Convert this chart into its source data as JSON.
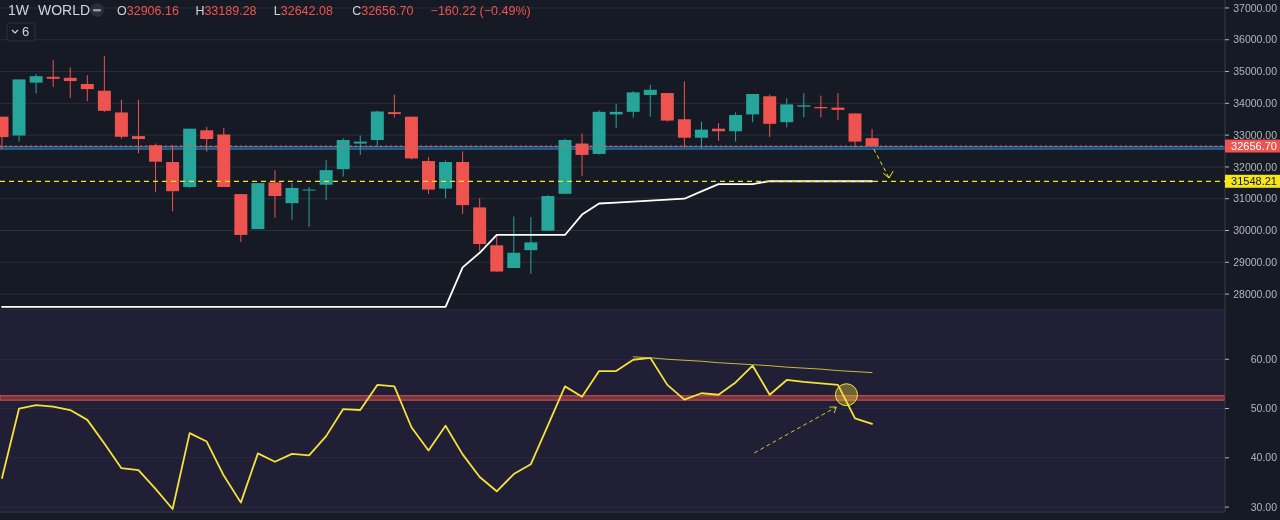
{
  "chart_data": [
    {
      "type": "candlestick",
      "annotations": [
        "1W",
        "WORLD",
        "O32906.16",
        "H33189.28",
        "L32642.08",
        "C32656.70",
        "−160.22 (−0.49%)",
        "6"
      ],
      "categories": [
        null,
        null,
        null,
        null,
        null,
        null,
        null,
        null,
        null,
        null,
        null,
        null,
        null,
        null,
        null,
        null,
        null,
        null,
        null,
        null,
        null,
        null,
        null,
        null,
        null,
        null,
        null,
        null,
        null,
        null,
        null,
        null,
        null,
        null,
        null,
        null,
        null,
        null,
        null,
        null,
        null,
        null,
        null,
        null,
        null,
        null,
        null,
        null,
        null,
        null,
        null,
        null
      ],
      "ohlc": [
        [
          33580,
          33580,
          32561,
          32938
        ],
        [
          32989,
          34752,
          32796,
          34752
        ],
        [
          34650,
          34925,
          34314,
          34854
        ],
        [
          34834,
          35364,
          34518,
          34773
        ],
        [
          34803,
          35129,
          34171,
          34701
        ],
        [
          34609,
          34885,
          34069,
          34446
        ],
        [
          34395,
          35486,
          33733,
          33764
        ],
        [
          33713,
          34110,
          32887,
          32948
        ],
        [
          32969,
          34110,
          32429,
          32877
        ],
        [
          32684,
          32734,
          31206,
          32164
        ],
        [
          32154,
          32684,
          30605,
          31237
        ],
        [
          31369,
          33203,
          31338,
          33203
        ],
        [
          33152,
          33264,
          32480,
          32877
        ],
        [
          33020,
          33224,
          31369,
          31369
        ],
        [
          31145,
          31145,
          29637,
          29861
        ],
        [
          30044,
          31491,
          30044,
          31491
        ],
        [
          31512,
          31899,
          30401,
          31084
        ],
        [
          30860,
          31491,
          30340,
          31338
        ],
        [
          31257,
          31369,
          30116,
          31288
        ],
        [
          31440,
          32225,
          30951,
          31899
        ],
        [
          31929,
          32898,
          31695,
          32847
        ],
        [
          32734,
          32989,
          32378,
          32796
        ],
        [
          32847,
          33774,
          32663,
          33743
        ],
        [
          33723,
          34273,
          33560,
          33662
        ],
        [
          33580,
          33580,
          32235,
          32266
        ],
        [
          32184,
          32307,
          31155,
          31287
        ],
        [
          31318,
          32205,
          31012,
          32154
        ],
        [
          32154,
          32490,
          30523,
          30798
        ],
        [
          30727,
          31012,
          29351,
          29575
        ],
        [
          29535,
          29861,
          28709,
          28709
        ],
        [
          28821,
          30442,
          28821,
          29300
        ],
        [
          29382,
          30421,
          28638,
          29627
        ],
        [
          29993,
          31114,
          29993,
          31084
        ],
        [
          31155,
          32887,
          31155,
          32847
        ],
        [
          32735,
          33050,
          31716,
          32378
        ],
        [
          32409,
          33784,
          32388,
          33733
        ],
        [
          33652,
          33978,
          33224,
          33733
        ],
        [
          33733,
          34385,
          33550,
          34345
        ],
        [
          34263,
          34579,
          33580,
          34426
        ],
        [
          34324,
          34324,
          33428,
          33458
        ],
        [
          33499,
          34691,
          32612,
          32918
        ],
        [
          32918,
          33427,
          32582,
          33173
        ],
        [
          33203,
          33377,
          32816,
          33122
        ],
        [
          33122,
          33713,
          32796,
          33631
        ],
        [
          33652,
          34293,
          33407,
          34293
        ],
        [
          34222,
          34273,
          32938,
          33356
        ],
        [
          33407,
          34161,
          33244,
          33967
        ],
        [
          33896,
          34324,
          33560,
          33937
        ],
        [
          33886,
          34242,
          33560,
          33845
        ],
        [
          33866,
          34324,
          33479,
          33794
        ],
        [
          33682,
          33682,
          32612,
          32796
        ],
        [
          32906.16,
          33189.28,
          32642.08,
          32656.7
        ]
      ],
      "series": [
        {
          "type": "line",
          "color": "#ffffff",
          "values": [
            27600,
            27600,
            27600,
            27600,
            27600,
            27600,
            27600,
            27600,
            27600,
            27600,
            27600,
            27600,
            27600,
            27600,
            27600,
            27600,
            27600,
            27600,
            27600,
            27600,
            27600,
            27600,
            27600,
            27600,
            27600,
            27600,
            27600,
            28840,
            29300,
            29860,
            29860,
            29860,
            29860,
            29860,
            30500,
            30850,
            30880,
            30910,
            30940,
            30970,
            31000,
            31230,
            31460,
            31460,
            31460,
            31550,
            31550,
            31550,
            31550,
            31550,
            31550,
            31550
          ]
        }
      ],
      "ylim": [
        27500,
        37250
      ],
      "yticks": [
        {
          "value": 28000,
          "label": "28000.00"
        },
        {
          "value": 29000,
          "label": "29000.00"
        },
        {
          "value": 30000,
          "label": "30000.00"
        },
        {
          "value": 31000,
          "label": "31000.00"
        },
        {
          "value": 32000,
          "label": "32000.00"
        },
        {
          "value": 33000,
          "label": "33000.00"
        },
        {
          "value": 34000,
          "label": "34000.00"
        },
        {
          "value": 35000,
          "label": "35000.00"
        },
        {
          "value": 36000,
          "label": "36000.00"
        },
        {
          "value": 37000,
          "label": "37000.00"
        }
      ],
      "ref_lines": [
        {
          "axis": "y",
          "value": 32656.7,
          "label": "32656.70",
          "color": "#ef5350",
          "line_style": "dotted"
        },
        {
          "axis": "y",
          "value": 31548.21,
          "label": "31548.21",
          "color": "#f5e51b",
          "line_style": "dashed"
        }
      ],
      "bands": [
        {
          "axis": "y",
          "from": 32560,
          "to": 32640,
          "color": "#2f7fb5"
        }
      ],
      "grid": "y",
      "tick_labels": "y"
    },
    {
      "type": "line",
      "categories": [
        null,
        null,
        null,
        null,
        null,
        null,
        null,
        null,
        null,
        null,
        null,
        null,
        null,
        null,
        null,
        null,
        null,
        null,
        null,
        null,
        null,
        null,
        null,
        null,
        null,
        null,
        null,
        null,
        null,
        null,
        null,
        null,
        null,
        null,
        null,
        null,
        null,
        null,
        null,
        null,
        null,
        null,
        null,
        null,
        null,
        null,
        null,
        null,
        null,
        null,
        null,
        null
      ],
      "series": [
        {
          "color": "#f5e13b",
          "values": [
            35.9,
            50.0,
            50.7,
            50.4,
            49.7,
            47.7,
            42.9,
            37.9,
            37.5,
            33.7,
            29.6,
            45.0,
            43.3,
            36.4,
            30.9,
            40.9,
            39.2,
            40.8,
            40.5,
            44.4,
            49.9,
            49.7,
            54.8,
            54.5,
            46.2,
            41.5,
            46.5,
            40.7,
            36.1,
            33.2,
            36.7,
            38.7,
            46.6,
            54.5,
            52.4,
            57.6,
            57.6,
            59.9,
            60.3,
            54.8,
            51.8,
            53.1,
            52.8,
            55.3,
            58.7,
            52.8,
            55.8,
            55.4,
            55.1,
            54.8,
            48.0,
            46.9
          ]
        },
        {
          "type": "line",
          "color": "#c9b83a",
          "values": [
            null,
            null,
            null,
            null,
            null,
            null,
            null,
            null,
            null,
            null,
            null,
            null,
            null,
            null,
            null,
            null,
            null,
            null,
            null,
            null,
            null,
            null,
            null,
            null,
            null,
            null,
            null,
            null,
            null,
            null,
            null,
            null,
            null,
            null,
            null,
            null,
            null,
            60.5,
            60.3,
            60.0,
            59.8,
            59.6,
            59.3,
            59.1,
            58.9,
            58.7,
            58.4,
            58.2,
            58.0,
            57.7,
            57.5,
            57.3
          ]
        }
      ],
      "ylim": [
        29,
        70
      ],
      "yticks": [
        {
          "value": 30,
          "label": "30.00"
        },
        {
          "value": 40,
          "label": "40.00"
        },
        {
          "value": 50,
          "label": "50.00"
        },
        {
          "value": 60,
          "label": "60.00"
        }
      ],
      "bands": [
        {
          "axis": "y",
          "from": 51.7,
          "to": 52.6,
          "color": "#d9534f"
        }
      ],
      "grid": "y",
      "tick_labels": "y"
    }
  ]
}
